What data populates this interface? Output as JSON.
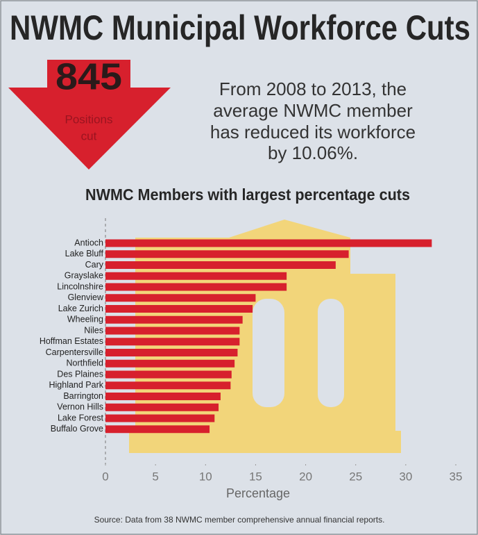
{
  "chart_data": {
    "type": "hbar",
    "title": "NWMC Municipal Workforce Cuts",
    "annotation": {
      "number": "845",
      "lines": [
        "Positions",
        "cut"
      ]
    },
    "subtitle": [
      "From 2008 to 2013, the",
      "average NWMC member",
      "has reduced its workforce",
      "by 10.06%."
    ],
    "chart_title": "NWMC Members with largest percentage cuts",
    "categories": [
      "Antioch",
      "Lake Bluff",
      "Cary",
      "Grayslake",
      "Lincolnshire",
      "Glenview",
      "Lake Zurich",
      "Wheeling",
      "Niles",
      "Hoffman Estates",
      "Carpentersville",
      "Northfield",
      "Des Plaines",
      "Highland Park",
      "Barrington",
      "Vernon Hills",
      "Lake Forest",
      "Buffalo Grove"
    ],
    "values": [
      32.6,
      24.3,
      23.0,
      18.1,
      18.1,
      15.0,
      14.7,
      13.7,
      13.4,
      13.4,
      13.2,
      12.9,
      12.6,
      12.5,
      11.5,
      11.3,
      10.9,
      10.4
    ],
    "color": "#d7202d",
    "xlim": [
      0,
      35
    ],
    "xticks": [
      0,
      5,
      10,
      15,
      20,
      25,
      30,
      35
    ],
    "xlabel": "Percentage",
    "source": "Source:  Data from 38 NWMC member comprehensive annual financial reports."
  }
}
